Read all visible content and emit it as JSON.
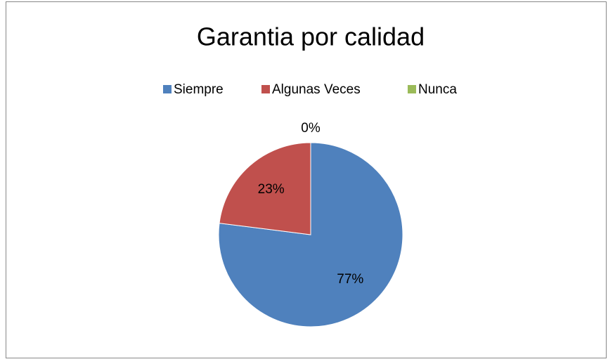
{
  "chart_data": {
    "type": "pie",
    "title": "Garantia por calidad",
    "categories": [
      "Siempre",
      "Algunas Veces",
      "Nunca"
    ],
    "values": [
      77,
      23,
      0
    ],
    "value_labels": [
      "77%",
      "23%",
      "0%"
    ],
    "colors": [
      "#4f81bd",
      "#c0504d",
      "#9bbb59"
    ],
    "legend": "top"
  }
}
